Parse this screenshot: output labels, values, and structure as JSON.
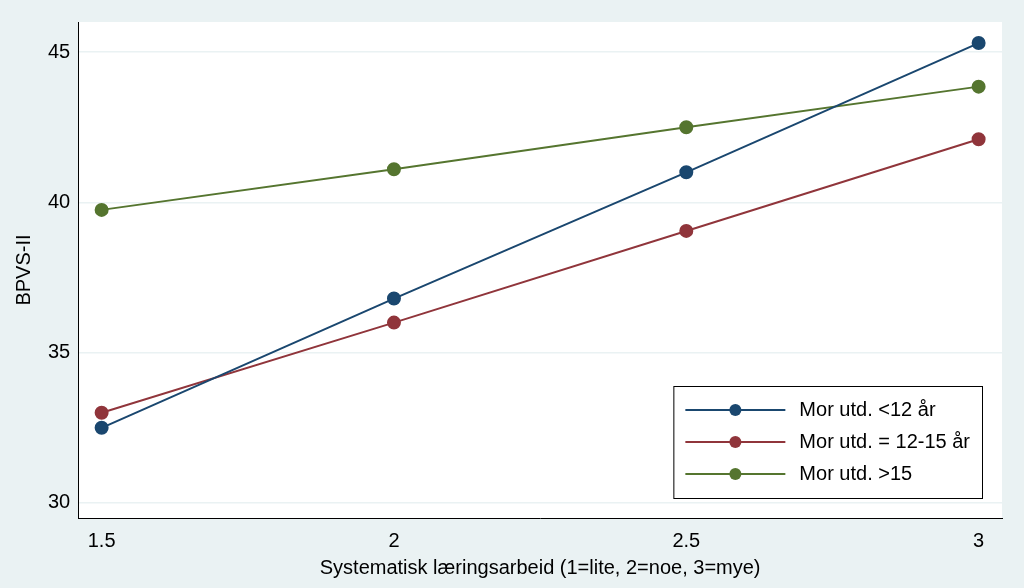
{
  "chart_data": {
    "type": "line",
    "x_label": "Systematisk læringsarbeid (1=lite, 2=noe, 3=mye)",
    "y_label": "BPVS-II",
    "x": [
      1.5,
      2,
      2.5,
      3
    ],
    "series": [
      {
        "name": "Mor utd. <12 år",
        "color": "#1a476f",
        "values": [
          32.5,
          36.8,
          41.0,
          45.3
        ]
      },
      {
        "name": "Mor utd. = 12-15 år",
        "color": "#90353b",
        "values": [
          33.0,
          36.0,
          39.05,
          42.1
        ]
      },
      {
        "name": "Mor utd. >15",
        "color": "#55752f",
        "values": [
          39.75,
          41.1,
          42.5,
          43.85
        ]
      }
    ],
    "xlim": [
      1.46,
      3.04
    ],
    "xticks": [
      1.5,
      2,
      2.5,
      3
    ],
    "ylim": [
      29.5,
      46
    ],
    "yticks": [
      30,
      35,
      40,
      45
    ],
    "grid": true,
    "legend": "bottom-right",
    "marker": "circle"
  }
}
